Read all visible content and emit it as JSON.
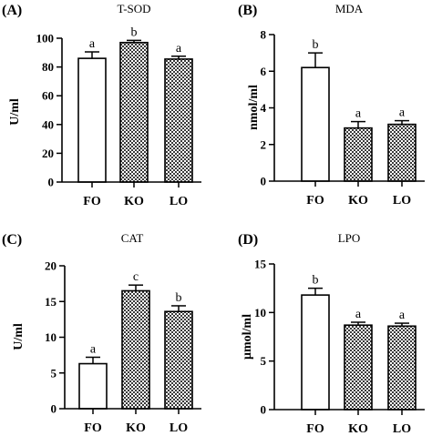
{
  "colors": {
    "axis": "#000000",
    "bar_fill_plain": "#ffffff",
    "bar_fill_checker_dark": "#3a3a3a",
    "bar_fill_checker_light": "#ffffff"
  },
  "chart_data": [
    {
      "type": "bar",
      "panel_label": "(A)",
      "title": "T-SOD",
      "ylabel": "U/ml",
      "xlabel": "",
      "ylim": [
        0,
        100
      ],
      "y_ticks": [
        0,
        20,
        40,
        60,
        80,
        100
      ],
      "categories": [
        "FO",
        "KO",
        "LO"
      ],
      "values": [
        86,
        97,
        85.5
      ],
      "errors": [
        4.5,
        1.5,
        2
      ],
      "significance": [
        "a",
        "b",
        "a"
      ],
      "bar_patterns": [
        "plain",
        "checker",
        "checker"
      ]
    },
    {
      "type": "bar",
      "panel_label": "(B)",
      "title": "MDA",
      "ylabel": "nmol/ml",
      "xlabel": "",
      "ylim": [
        0,
        8
      ],
      "y_ticks": [
        0,
        2,
        4,
        6,
        8
      ],
      "categories": [
        "FO",
        "KO",
        "LO"
      ],
      "values": [
        6.2,
        2.9,
        3.1
      ],
      "errors": [
        0.8,
        0.35,
        0.2
      ],
      "significance": [
        "b",
        "a",
        "a"
      ],
      "bar_patterns": [
        "plain",
        "checker",
        "checker"
      ]
    },
    {
      "type": "bar",
      "panel_label": "(C)",
      "title": "CAT",
      "ylabel": "U/ml",
      "xlabel": "",
      "ylim": [
        0,
        20
      ],
      "y_ticks": [
        0,
        5,
        10,
        15,
        20
      ],
      "categories": [
        "FO",
        "KO",
        "LO"
      ],
      "values": [
        6.3,
        16.5,
        13.6
      ],
      "errors": [
        0.9,
        0.8,
        0.8
      ],
      "significance": [
        "a",
        "c",
        "b"
      ],
      "bar_patterns": [
        "plain",
        "checker",
        "checker"
      ]
    },
    {
      "type": "bar",
      "panel_label": "(D)",
      "title": "LPO",
      "ylabel": "μmol/ml",
      "xlabel": "",
      "ylim": [
        0,
        15
      ],
      "y_ticks": [
        0,
        5,
        10,
        15
      ],
      "categories": [
        "FO",
        "KO",
        "LO"
      ],
      "values": [
        11.8,
        8.7,
        8.6
      ],
      "errors": [
        0.7,
        0.3,
        0.3
      ],
      "significance": [
        "b",
        "a",
        "a"
      ],
      "bar_patterns": [
        "plain",
        "checker",
        "checker"
      ]
    }
  ]
}
